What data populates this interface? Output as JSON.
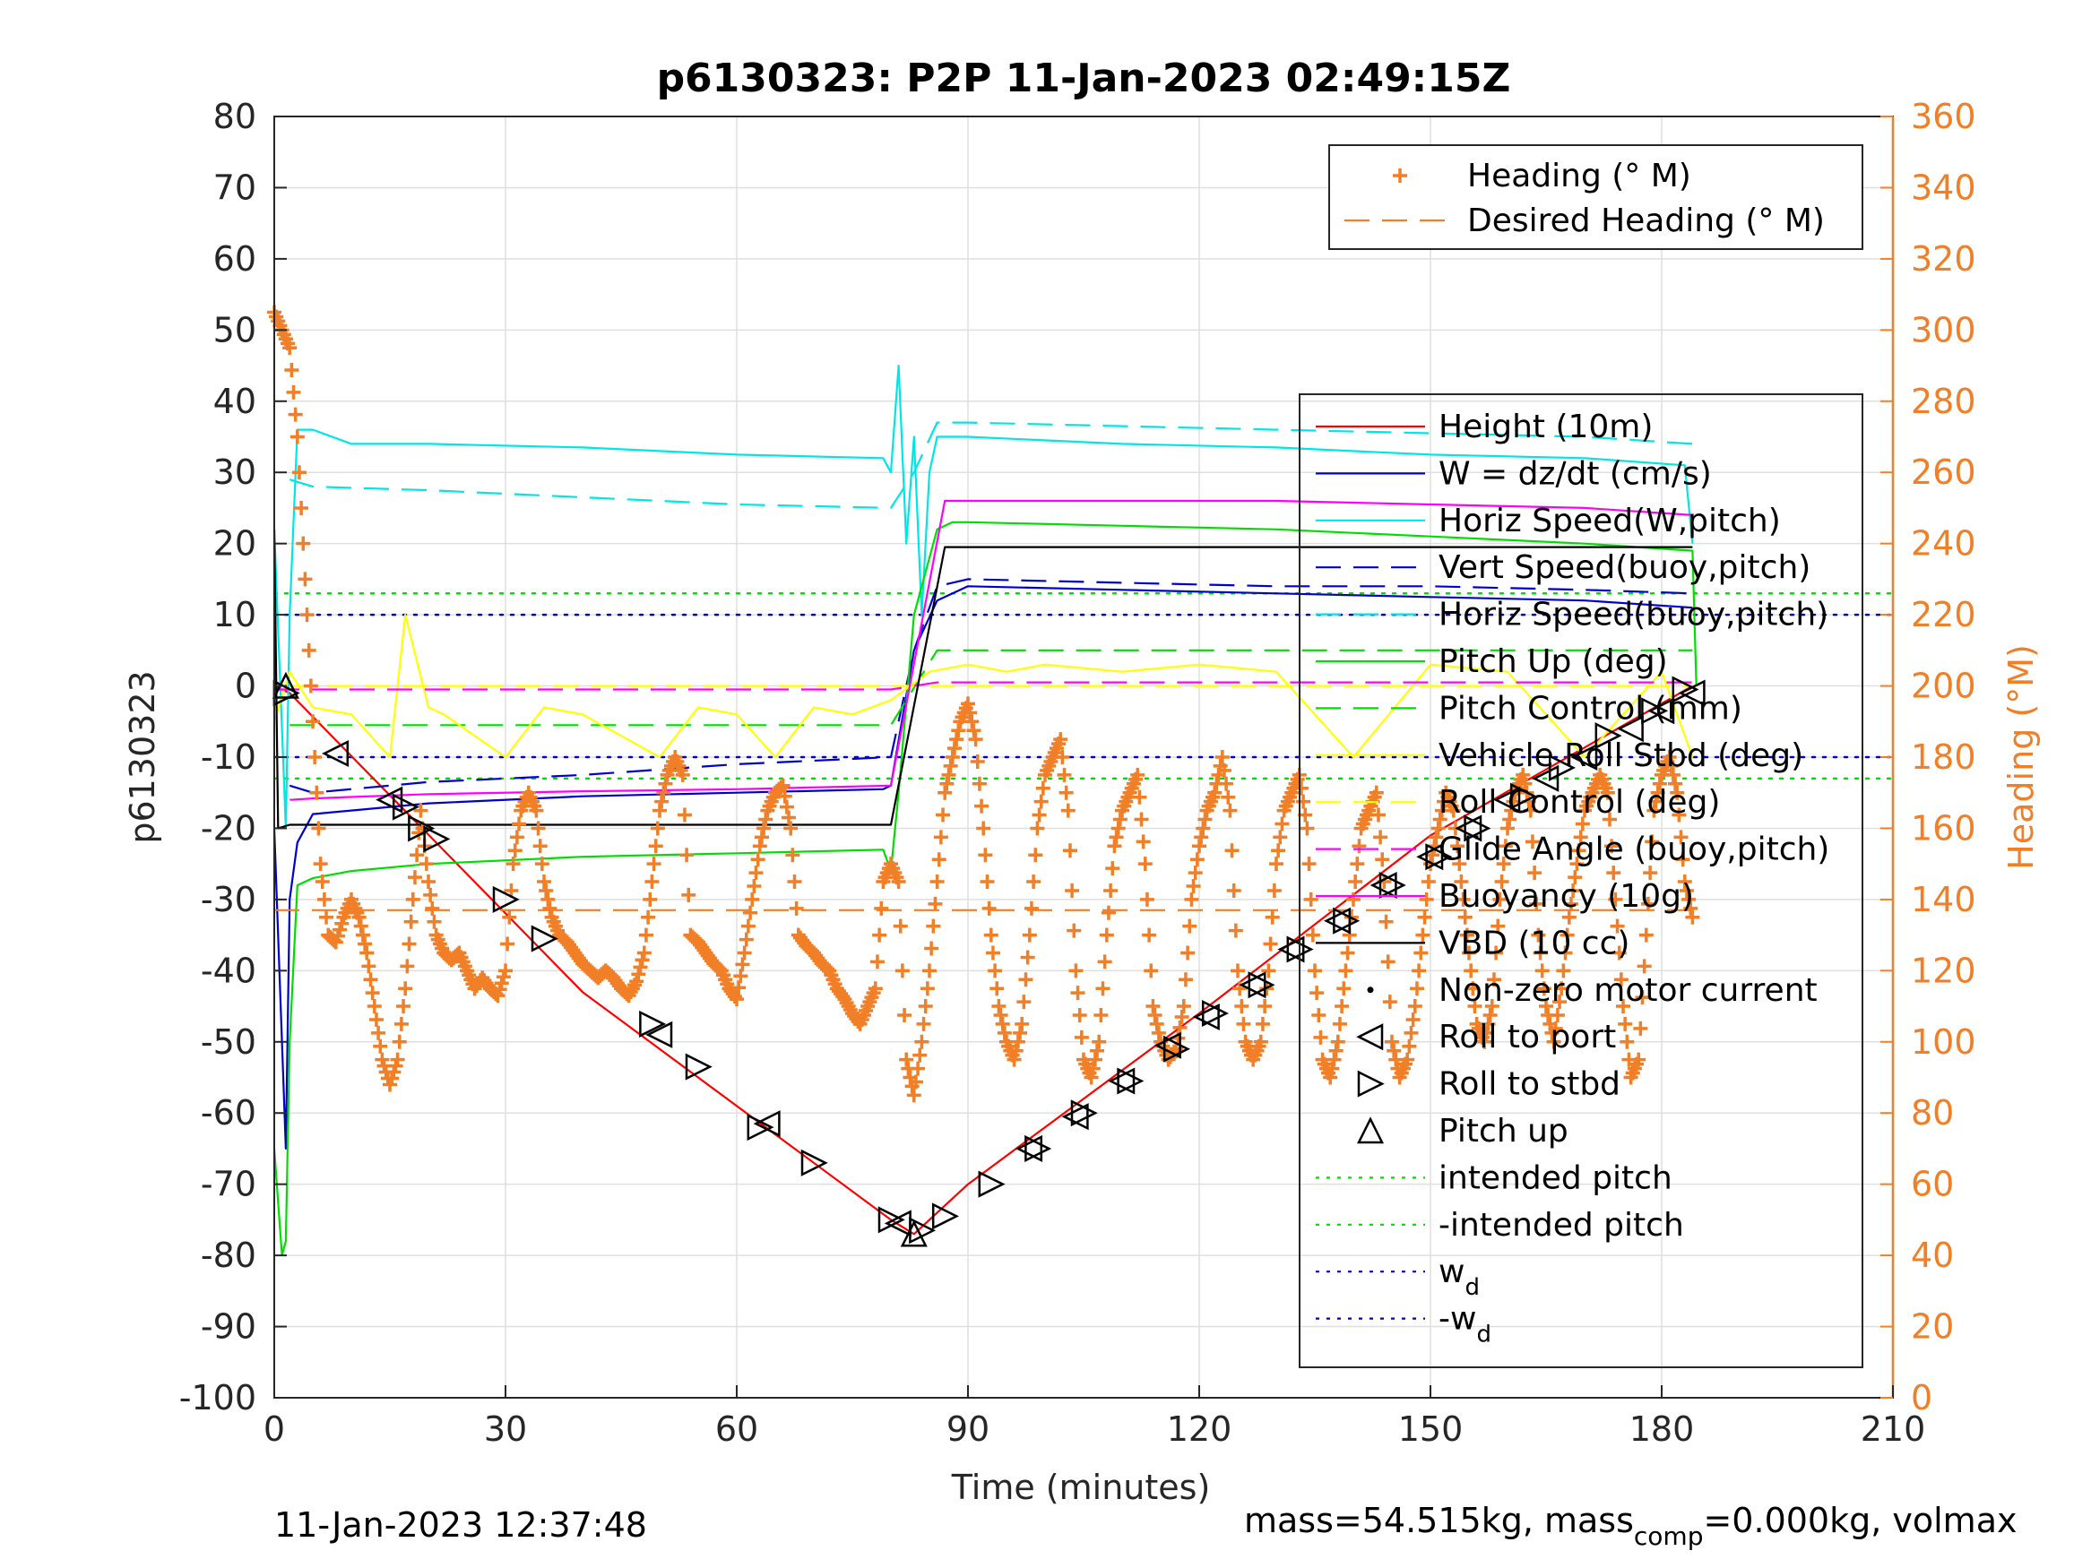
{
  "chart_data": {
    "type": "line",
    "title": "p6130323: P2P 11-Jan-2023 02:49:15Z",
    "xlabel": "Time (minutes)",
    "ylabel": "p6130323",
    "y2label": "Heading (°M)",
    "xlim": [
      0,
      210
    ],
    "ylim": [
      -100,
      80
    ],
    "y2lim": [
      0,
      360
    ],
    "xticks": [
      0,
      30,
      60,
      90,
      120,
      150,
      180,
      210
    ],
    "yticks": [
      -100,
      -90,
      -80,
      -70,
      -60,
      -50,
      -40,
      -30,
      -20,
      -10,
      0,
      10,
      20,
      30,
      40,
      50,
      60,
      70,
      80
    ],
    "y2ticks": [
      0,
      20,
      40,
      60,
      80,
      100,
      120,
      140,
      160,
      180,
      200,
      220,
      240,
      260,
      280,
      300,
      320,
      340,
      360
    ],
    "grid": true,
    "legend_top": [
      {
        "label": "Heading (° M)",
        "color": "#f07f27",
        "style": "plus"
      },
      {
        "label": "Desired Heading (° M)",
        "color": "#f07f27",
        "style": "dashed"
      }
    ],
    "legend_main": [
      {
        "label": "Height (10m)",
        "color": "#ff0000",
        "style": "solid"
      },
      {
        "label": "W = dz/dt (cm/s)",
        "color": "#0000cc",
        "style": "solid"
      },
      {
        "label": "Horiz Speed(W,pitch)",
        "color": "#00e5e5",
        "style": "solid"
      },
      {
        "label": "Vert Speed(buoy,pitch)",
        "color": "#0000cc",
        "style": "dashed"
      },
      {
        "label": "Horiz Speed(buoy,pitch)",
        "color": "#00e5e5",
        "style": "dashed"
      },
      {
        "label": "Pitch Up (deg)",
        "color": "#00dd00",
        "style": "solid"
      },
      {
        "label": "Pitch Control (mm)",
        "color": "#00dd00",
        "style": "dashed"
      },
      {
        "label": "Vehicle Roll Stbd (deg)",
        "color": "#ffff00",
        "style": "solid"
      },
      {
        "label": "Roll Control (deg)",
        "color": "#ffff00",
        "style": "dashed"
      },
      {
        "label": "Glide Angle (buoy,pitch)",
        "color": "#ff00ff",
        "style": "dashed"
      },
      {
        "label": "Buoyancy (10g)",
        "color": "#ff00ff",
        "style": "solid"
      },
      {
        "label": "VBD (10 cc)",
        "color": "#000000",
        "style": "solid"
      },
      {
        "label": "Non-zero motor current",
        "color": "#000000",
        "style": "dot"
      },
      {
        "label": "Roll to port",
        "color": "#000000",
        "style": "tri-left"
      },
      {
        "label": "Roll to stbd",
        "color": "#000000",
        "style": "tri-right"
      },
      {
        "label": "Pitch up",
        "color": "#000000",
        "style": "tri-up"
      },
      {
        "label": "intended pitch",
        "color": "#00dd00",
        "style": "dotted"
      },
      {
        "label": "-intended pitch",
        "color": "#00dd00",
        "style": "dotted"
      },
      {
        "label": "w",
        "sub": "d",
        "color": "#0000cc",
        "style": "dotted"
      },
      {
        "label": "-w",
        "sub": "d",
        "color": "#0000cc",
        "style": "dotted"
      }
    ],
    "series": [
      {
        "name": "Height (10m)",
        "axis": "left",
        "color": "#ff0000",
        "style": "solid",
        "x": [
          0,
          2,
          40,
          80,
          83,
          90,
          120,
          150,
          184
        ],
        "y": [
          0,
          -1,
          -43,
          -75,
          -77,
          -70,
          -46,
          -21,
          0
        ]
      },
      {
        "name": "W = dz/dt (cm/s)",
        "axis": "left",
        "color": "#0000cc",
        "style": "solid",
        "x": [
          0,
          1.5,
          2,
          3,
          5,
          10,
          20,
          40,
          60,
          79,
          80,
          83,
          86,
          90,
          110,
          130,
          150,
          170,
          184
        ],
        "y": [
          -20,
          -65,
          -30,
          -22,
          -18,
          -17.5,
          -16.5,
          -15.5,
          -15,
          -14.5,
          -14,
          5,
          12,
          14,
          13.5,
          13,
          12.5,
          12,
          11
        ]
      },
      {
        "name": "Horiz Speed(W,pitch)",
        "axis": "left",
        "color": "#00e5e5",
        "style": "solid",
        "x": [
          0,
          1.5,
          2,
          3,
          5,
          10,
          20,
          40,
          60,
          79,
          80,
          81,
          82,
          83,
          84,
          85,
          86,
          88,
          90,
          110,
          130,
          150,
          170,
          183,
          184
        ],
        "y": [
          22,
          -20,
          10,
          36,
          36,
          34,
          34,
          33.5,
          32.5,
          32,
          30,
          45,
          20,
          35,
          10,
          30,
          35,
          35,
          35,
          34,
          33.5,
          32.5,
          32,
          31,
          20
        ]
      },
      {
        "name": "Vert Speed(buoy,pitch)",
        "axis": "left",
        "color": "#0000cc",
        "style": "dashed",
        "x": [
          2,
          5,
          20,
          40,
          60,
          80,
          83,
          86,
          90,
          110,
          130,
          150,
          170,
          184
        ],
        "y": [
          -14,
          -15,
          -13.5,
          -12.5,
          -11,
          -10,
          5,
          14,
          15,
          14.5,
          14,
          14,
          13.5,
          13
        ]
      },
      {
        "name": "Horiz Speed(buoy,pitch)",
        "axis": "left",
        "color": "#00e5e5",
        "style": "dashed",
        "x": [
          2,
          5,
          20,
          40,
          60,
          80,
          83,
          86,
          90,
          110,
          130,
          150,
          170,
          184
        ],
        "y": [
          29,
          28,
          27.5,
          26.5,
          25.5,
          25,
          30,
          37,
          37,
          36.5,
          36,
          35.5,
          35,
          34
        ]
      },
      {
        "name": "Pitch Up (deg)",
        "axis": "left",
        "color": "#00dd00",
        "style": "solid",
        "x": [
          0,
          1,
          1.5,
          2,
          3,
          5,
          10,
          20,
          40,
          60,
          79,
          80,
          81,
          83,
          86,
          88,
          90,
          110,
          130,
          150,
          170,
          184,
          184.5
        ],
        "y": [
          -65,
          -80,
          -78,
          -50,
          -28,
          -27,
          -26,
          -25,
          -24,
          -23.5,
          -23,
          -26,
          -15,
          10,
          22,
          23,
          23,
          22.5,
          22,
          21,
          20,
          19,
          0
        ]
      },
      {
        "name": "Pitch Control (mm)",
        "axis": "left",
        "color": "#00dd00",
        "style": "dashed",
        "x": [
          2,
          80,
          86,
          184
        ],
        "y": [
          -5.5,
          -5.5,
          5,
          5
        ]
      },
      {
        "name": "Vehicle Roll Stbd (deg)",
        "axis": "left",
        "color": "#ffff00",
        "style": "solid",
        "x": [
          0,
          2,
          5,
          10,
          15,
          17,
          20,
          22,
          30,
          35,
          40,
          50,
          55,
          60,
          65,
          70,
          75,
          80,
          85,
          90,
          95,
          100,
          110,
          120,
          130,
          140,
          150,
          160,
          170,
          180,
          184
        ],
        "y": [
          -5,
          2,
          -3,
          -4,
          -10,
          10,
          -3,
          -4,
          -10,
          -3,
          -4,
          -10,
          -3,
          -4,
          -10,
          -3,
          -4,
          -2,
          2,
          3,
          2,
          3,
          2,
          3,
          2,
          -10,
          3,
          2,
          -10,
          2,
          -10
        ]
      },
      {
        "name": "Roll Control (deg)",
        "axis": "left",
        "color": "#ffff00",
        "style": "dashed",
        "x": [
          2,
          184
        ],
        "y": [
          0,
          0
        ]
      },
      {
        "name": "Glide Angle (buoy,pitch)",
        "axis": "left",
        "color": "#ff00ff",
        "style": "dashed",
        "x": [
          0,
          80,
          86,
          184
        ],
        "y": [
          -0.5,
          -0.5,
          0.5,
          0.5
        ]
      },
      {
        "name": "Buoyancy (10g)",
        "axis": "left",
        "color": "#ff00ff",
        "style": "solid",
        "x": [
          2,
          5,
          20,
          40,
          60,
          80,
          87,
          100,
          130,
          150,
          170,
          184
        ],
        "y": [
          -16,
          -15.8,
          -15.2,
          -14.8,
          -14.5,
          -14,
          26,
          26,
          26,
          25.5,
          25,
          24
        ]
      },
      {
        "name": "VBD (10 cc)",
        "axis": "left",
        "color": "#000000",
        "style": "solid",
        "x": [
          0,
          0.5,
          2,
          80,
          87,
          184
        ],
        "y": [
          22,
          -20,
          -19.5,
          -19.5,
          19.5,
          19.5
        ]
      },
      {
        "name": "Heading (° M)",
        "axis": "right",
        "color": "#f07f27",
        "style": "plus",
        "x": [
          0,
          1,
          2,
          3,
          4,
          5,
          6,
          7,
          8,
          9,
          10,
          11,
          12,
          13,
          14,
          15,
          16,
          17,
          18,
          19,
          20,
          21,
          22,
          23,
          24,
          25,
          26,
          27,
          28,
          29,
          30,
          31,
          32,
          33,
          34,
          35,
          36,
          37,
          38,
          39,
          40,
          41,
          42,
          43,
          44,
          45,
          46,
          47,
          48,
          49,
          50,
          51,
          52,
          53,
          54,
          55,
          56,
          57,
          58,
          59,
          60,
          61,
          62,
          63,
          64,
          65,
          66,
          67,
          68,
          69,
          70,
          71,
          72,
          73,
          74,
          75,
          76,
          77,
          78,
          79,
          80,
          81,
          82,
          83,
          84,
          85,
          86,
          87,
          88,
          89,
          90,
          91,
          92,
          93,
          94,
          95,
          96,
          97,
          98,
          99,
          100,
          101,
          102,
          103,
          104,
          105,
          106,
          107,
          108,
          109,
          110,
          111,
          112,
          113,
          114,
          115,
          116,
          117,
          118,
          119,
          120,
          121,
          122,
          123,
          124,
          125,
          126,
          127,
          128,
          129,
          130,
          131,
          132,
          133,
          134,
          135,
          136,
          137,
          138,
          139,
          140,
          141,
          142,
          143,
          144,
          145,
          146,
          147,
          148,
          149,
          150,
          151,
          152,
          153,
          154,
          155,
          156,
          157,
          158,
          159,
          160,
          161,
          162,
          163,
          164,
          165,
          166,
          167,
          168,
          169,
          170,
          171,
          172,
          173,
          174,
          175,
          176,
          177,
          178,
          179,
          180,
          181,
          182,
          183,
          184
        ],
        "y": [
          305,
          300,
          295,
          270,
          230,
          190,
          150,
          130,
          128,
          135,
          140,
          135,
          125,
          110,
          95,
          88,
          95,
          115,
          140,
          165,
          145,
          130,
          125,
          123,
          125,
          120,
          115,
          118,
          115,
          113,
          120,
          150,
          165,
          170,
          165,
          145,
          135,
          130,
          128,
          125,
          122,
          120,
          118,
          120,
          118,
          115,
          113,
          117,
          125,
          145,
          165,
          175,
          180,
          175,
          130,
          128,
          125,
          122,
          120,
          115,
          112,
          125,
          140,
          155,
          165,
          170,
          172,
          160,
          130,
          127,
          125,
          122,
          120,
          115,
          112,
          108,
          105,
          110,
          115,
          145,
          150,
          145,
          95,
          85,
          100,
          120,
          145,
          170,
          180,
          190,
          195,
          185,
          160,
          130,
          110,
          100,
          95,
          105,
          130,
          160,
          175,
          180,
          185,
          165,
          120,
          95,
          90,
          100,
          130,
          155,
          165,
          170,
          175,
          150,
          110,
          100,
          95,
          98,
          110,
          140,
          155,
          165,
          170,
          180,
          165,
          120,
          100,
          95,
          100,
          120,
          150,
          165,
          170,
          175,
          160,
          120,
          95,
          90,
          100,
          120,
          140,
          160,
          165,
          170,
          145,
          100,
          90,
          95,
          110,
          130,
          150,
          160,
          170,
          165,
          145,
          125,
          105,
          100,
          110,
          140,
          160,
          170,
          175,
          165,
          130,
          110,
          100,
          115,
          135,
          150,
          165,
          170,
          175,
          170,
          140,
          110,
          90,
          95,
          130,
          165,
          175,
          180,
          170,
          145,
          135
        ]
      },
      {
        "name": "Desired Heading (° M)",
        "axis": "right",
        "color": "#f07f27",
        "style": "dashed",
        "x": [
          0,
          184
        ],
        "y": [
          137,
          137
        ]
      }
    ],
    "reference_lines": [
      {
        "name": "intended pitch",
        "axis": "left",
        "y": 13,
        "color": "#00dd00",
        "style": "dotted"
      },
      {
        "name": "-intended pitch",
        "axis": "left",
        "y": -13,
        "color": "#00dd00",
        "style": "dotted"
      },
      {
        "name": "w_d",
        "axis": "left",
        "y": 10,
        "color": "#0000cc",
        "style": "dotted"
      },
      {
        "name": "-w_d",
        "axis": "left",
        "y": -10,
        "color": "#0000cc",
        "style": "dotted"
      }
    ],
    "markers": {
      "roll_port": {
        "x": [
          8,
          15,
          50,
          64,
          81,
          98,
          104,
          110,
          116,
          121,
          127,
          132,
          138,
          144,
          150,
          155,
          160,
          165,
          170,
          176,
          180,
          184
        ],
        "y": [
          -9.5,
          -16,
          -49,
          -61.5,
          -75.5,
          -65,
          -60.5,
          -55.5,
          -50.5,
          -46.5,
          -42,
          -37,
          -33,
          -28,
          -24,
          -20,
          -16,
          -13,
          -10,
          -6,
          -3.5,
          -1
        ]
      },
      "roll_stbd": {
        "x": [
          1.5,
          17,
          19,
          21,
          30,
          35,
          49,
          55,
          63,
          70,
          80,
          84,
          87,
          93,
          99,
          105,
          111,
          117,
          122,
          128,
          133,
          139,
          145,
          151,
          156,
          162,
          167,
          173,
          179,
          183
        ],
        "y": [
          -1,
          -17,
          -20,
          -21.5,
          -30,
          -35.5,
          -47.5,
          -53.5,
          -62,
          -67,
          -75,
          -76.5,
          -74.5,
          -70,
          -65,
          -60,
          -55.5,
          -51,
          -46,
          -42,
          -37,
          -33,
          -28,
          -24,
          -20,
          -15.5,
          -11.5,
          -7,
          -3.5,
          -0.5
        ]
      },
      "pitch_up": {
        "x": [
          1.5,
          83
        ],
        "y": [
          0,
          -77
        ]
      }
    },
    "footer_left": "11-Jan-2023 12:37:48",
    "footer_right_prefix": "mass=54.515kg, mass",
    "footer_right_sub": "comp",
    "footer_right_suffix": "=0.000kg, volmax"
  }
}
